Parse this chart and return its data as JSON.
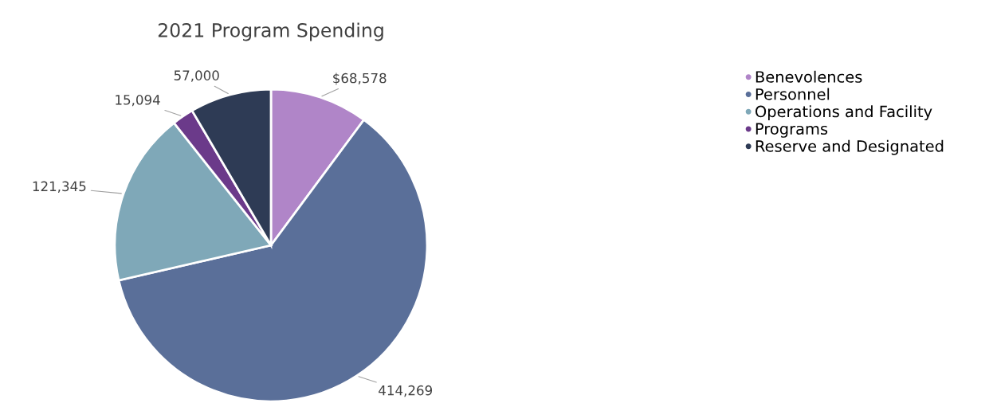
{
  "chart_data": {
    "type": "pie",
    "title": "2021 Program Spending",
    "categories": [
      "Benevolences",
      "Personnel",
      "Operations and Facility",
      "Programs",
      "Reserve and Designated"
    ],
    "values": [
      68578,
      414269,
      121345,
      15094,
      57000
    ],
    "value_labels": [
      "$68,578",
      "414,269",
      "121,345",
      "15,094",
      "57,000"
    ],
    "colors": [
      "#b085c8",
      "#5a6f99",
      "#7fa8b8",
      "#6b3a8a",
      "#2e3b55"
    ],
    "legend": "right"
  }
}
